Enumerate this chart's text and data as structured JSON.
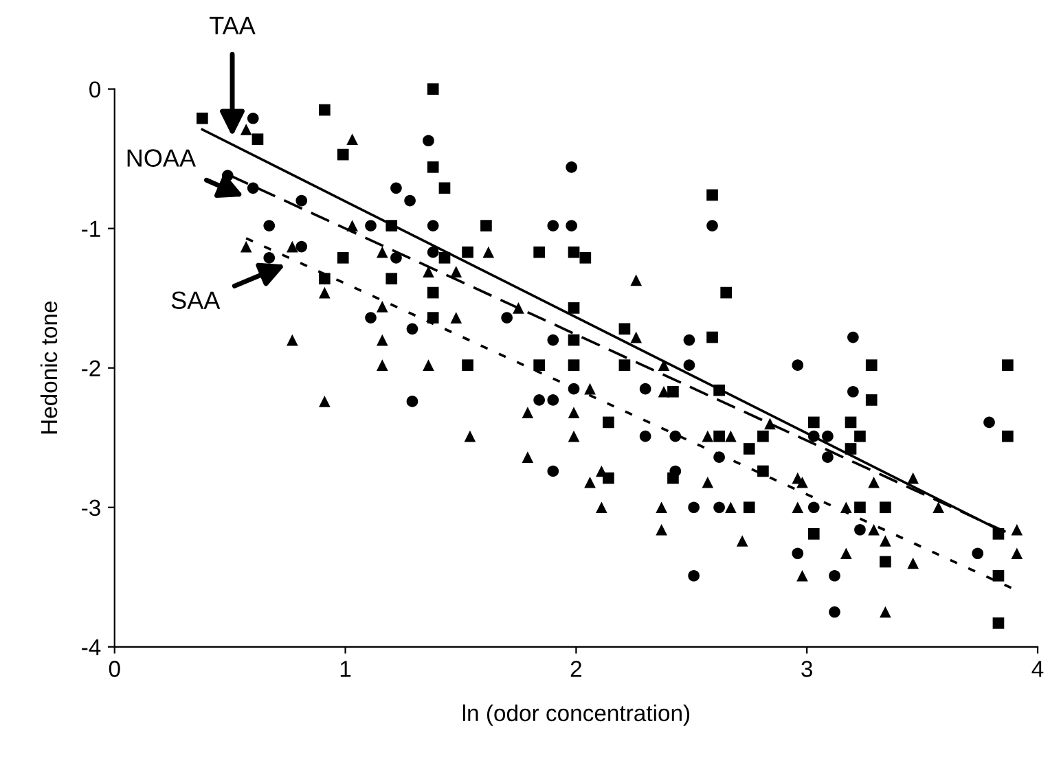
{
  "chart_data": {
    "type": "scatter",
    "xlabel": "ln (odor concentration)",
    "ylabel": "Hedonic tone",
    "xlim": [
      0,
      4
    ],
    "ylim": [
      -4,
      0
    ],
    "xticks": [
      0,
      1,
      2,
      3,
      4
    ],
    "yticks": [
      0,
      -1,
      -2,
      -3,
      -4
    ],
    "series": [
      {
        "marker": "square",
        "color": "#000000",
        "x": [
          0.38,
          0.62,
          0.91,
          1.38,
          0.99,
          1.38,
          1.43,
          1.2,
          0.99,
          1.2,
          1.43,
          1.38,
          0.91,
          1.38,
          2.59,
          1.61,
          1.53,
          1.84,
          1.99,
          2.04,
          2.65,
          1.99,
          2.21,
          1.99,
          2.59,
          1.53,
          1.84,
          1.99,
          2.21,
          3.28,
          3.87,
          2.42,
          2.62,
          2.14,
          2.62,
          2.81,
          2.75,
          2.81,
          2.14,
          2.42,
          2.75,
          3.28,
          3.03,
          3.19,
          3.23,
          3.19,
          3.23,
          3.34,
          3.03,
          3.34,
          3.87,
          3.83,
          3.83,
          3.83
        ],
        "values": [
          -0.21,
          -0.36,
          -0.15,
          0,
          -0.47,
          -0.56,
          -0.71,
          -0.98,
          -1.21,
          -1.36,
          -1.21,
          -1.46,
          -1.36,
          -1.64,
          -0.76,
          -0.98,
          -1.17,
          -1.17,
          -1.17,
          -1.21,
          -1.46,
          -1.57,
          -1.72,
          -1.8,
          -1.78,
          -1.98,
          -1.98,
          -1.98,
          -1.98,
          -1.98,
          -1.98,
          -2.17,
          -2.16,
          -2.39,
          -2.49,
          -2.49,
          -2.58,
          -2.74,
          -2.79,
          -2.79,
          -3.0,
          -2.23,
          -2.39,
          -2.39,
          -2.49,
          -2.58,
          -3.0,
          -3.0,
          -3.19,
          -3.39,
          -2.49,
          -3.19,
          -3.49,
          -3.83
        ]
      },
      {
        "marker": "circle",
        "color": "#000000",
        "x": [
          0.6,
          0.49,
          0.6,
          0.81,
          0.67,
          0.81,
          0.67,
          1.36,
          1.22,
          1.28,
          1.11,
          1.38,
          1.38,
          1.22,
          1.11,
          1.29,
          1.98,
          1.9,
          1.98,
          2.59,
          1.7,
          1.9,
          2.49,
          2.49,
          3.2,
          2.96,
          1.29,
          1.99,
          2.3,
          1.84,
          1.9,
          2.3,
          2.43,
          2.62,
          1.9,
          2.43,
          2.51,
          2.62,
          2.51,
          3.2,
          3.03,
          3.09,
          3.09,
          3.79,
          3.03,
          3.23,
          2.96,
          3.74,
          3.12,
          3.12
        ],
        "values": [
          -0.21,
          -0.62,
          -0.71,
          -0.8,
          -0.98,
          -1.13,
          -1.21,
          -0.37,
          -0.71,
          -0.8,
          -0.98,
          -0.98,
          -1.17,
          -1.21,
          -1.64,
          -1.72,
          -0.56,
          -0.98,
          -0.98,
          -0.98,
          -1.64,
          -1.8,
          -1.8,
          -1.98,
          -1.78,
          -1.98,
          -2.24,
          -2.15,
          -2.15,
          -2.23,
          -2.23,
          -2.49,
          -2.49,
          -2.64,
          -2.74,
          -2.74,
          -3.0,
          -3.0,
          -3.49,
          -2.17,
          -2.49,
          -2.49,
          -2.64,
          -2.39,
          -3.0,
          -3.16,
          -3.33,
          -3.33,
          -3.49,
          -3.75
        ]
      },
      {
        "marker": "triangle",
        "color": "#000000",
        "x": [
          0.57,
          1.03,
          0.57,
          0.77,
          1.03,
          1.16,
          1.36,
          0.91,
          1.16,
          1.48,
          1.48,
          0.77,
          1.16,
          1.16,
          1.36,
          1.62,
          2.26,
          1.75,
          2.26,
          2.38,
          0.91,
          2.06,
          2.38,
          1.79,
          1.99,
          1.54,
          1.99,
          2.57,
          2.67,
          2.84,
          1.79,
          2.11,
          2.06,
          2.57,
          2.11,
          2.37,
          2.67,
          2.37,
          2.72,
          2.96,
          2.98,
          3.29,
          3.46,
          2.96,
          3.17,
          3.57,
          3.29,
          3.34,
          3.17,
          3.46,
          3.91,
          3.91,
          2.98,
          3.34
        ],
        "values": [
          -0.29,
          -0.36,
          -1.13,
          -1.13,
          -0.98,
          -1.17,
          -1.31,
          -1.46,
          -1.56,
          -1.31,
          -1.64,
          -1.8,
          -1.8,
          -1.98,
          -1.98,
          -1.17,
          -1.37,
          -1.57,
          -1.78,
          -1.98,
          -2.24,
          -2.15,
          -2.17,
          -2.32,
          -2.32,
          -2.49,
          -2.49,
          -2.49,
          -2.49,
          -2.4,
          -2.64,
          -2.74,
          -2.82,
          -2.82,
          -3.0,
          -3.0,
          -3.0,
          -3.16,
          -3.24,
          -2.79,
          -2.82,
          -2.82,
          -2.79,
          -3.0,
          -3.0,
          -3.0,
          -3.16,
          -3.24,
          -3.33,
          -3.4,
          -3.16,
          -3.33,
          -3.49,
          -3.75
        ]
      },
      {
        "type": "line",
        "line_style": "solid",
        "color": "#000000",
        "x": [
          0.38,
          3.82
        ],
        "values": [
          -0.29,
          -3.15
        ]
      },
      {
        "type": "line",
        "line_style": "dashed",
        "color": "#000000",
        "x": [
          0.5,
          3.88
        ],
        "values": [
          -0.62,
          -3.19
        ]
      },
      {
        "type": "line",
        "line_style": "dotted",
        "color": "#000000",
        "x": [
          0.57,
          3.89
        ],
        "values": [
          -1.07,
          -3.58
        ]
      }
    ],
    "annotations": [
      {
        "text": "TAA",
        "x": 0.51,
        "y": -0.34
      },
      {
        "text": "NOAA",
        "x": 0.56,
        "y": -0.77
      },
      {
        "text": "SAA",
        "x": 0.74,
        "y": -1.26
      }
    ]
  }
}
